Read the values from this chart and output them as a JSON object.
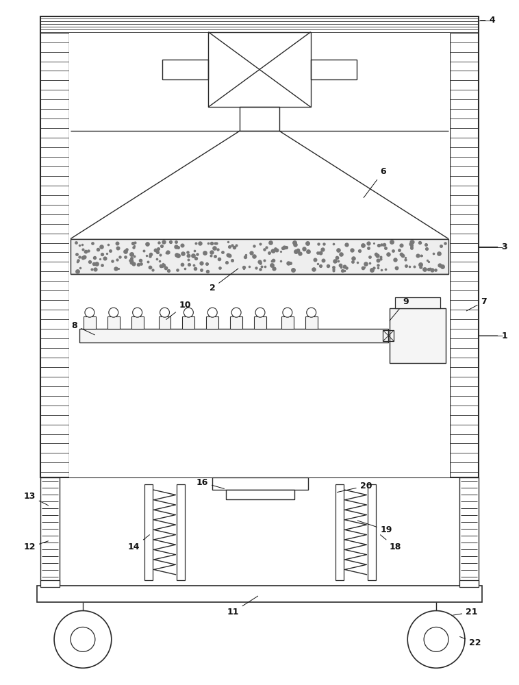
{
  "bg_color": "#ffffff",
  "line_color": "#2a2a2a",
  "lw": 1.0,
  "fig_w": 7.58,
  "fig_h": 10.0
}
